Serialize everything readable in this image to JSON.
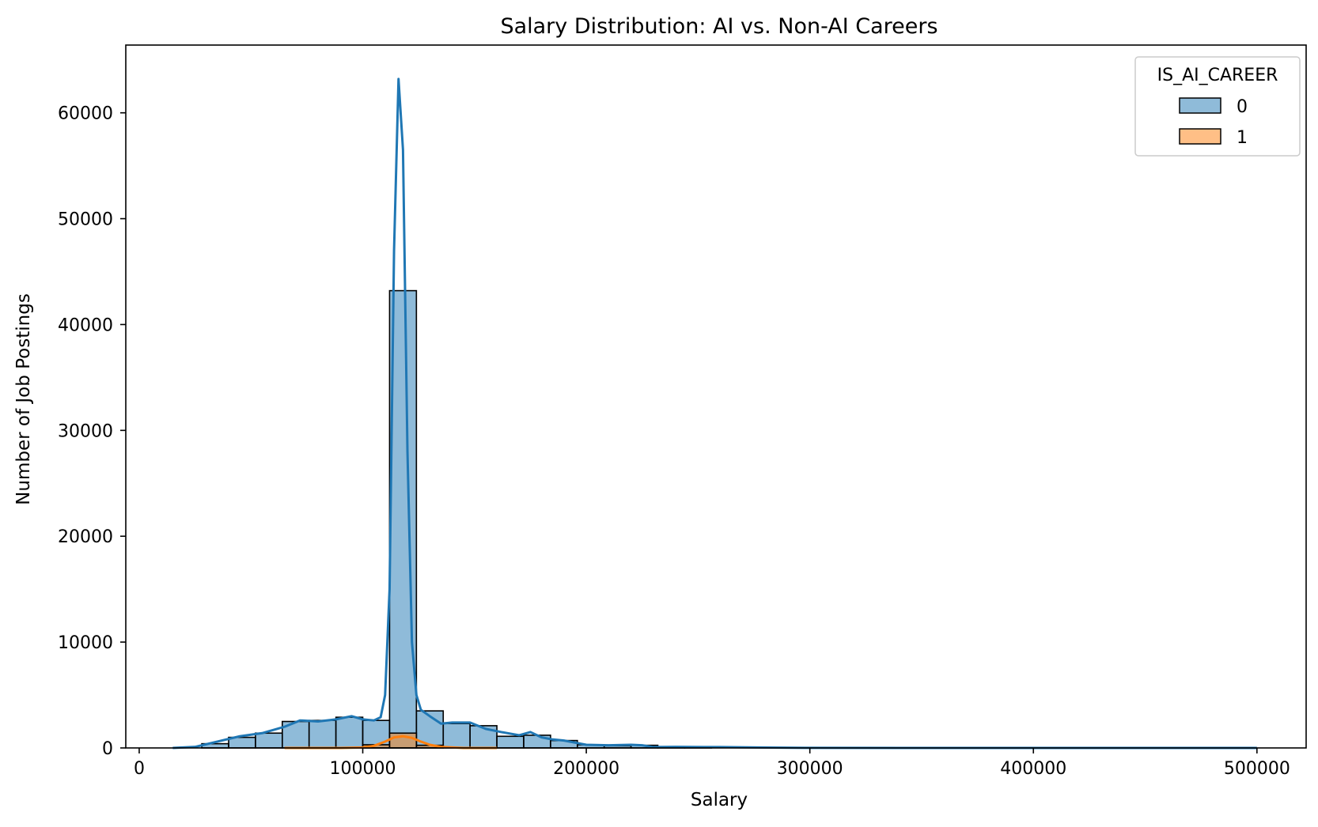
{
  "chart_data": {
    "type": "bar",
    "title": "Salary Distribution: AI vs. Non-AI Careers",
    "xlabel": "Salary",
    "ylabel": "Number of Job Postings",
    "xlim": [
      -6000,
      522000
    ],
    "ylim": [
      0,
      66400
    ],
    "xticks": [
      0,
      100000,
      200000,
      300000,
      400000,
      500000
    ],
    "yticks": [
      0,
      10000,
      20000,
      30000,
      40000,
      50000,
      60000
    ],
    "legend": {
      "title": "IS_AI_CAREER",
      "placement": "top-right"
    },
    "bin_width": 12000,
    "series": [
      {
        "name": "0",
        "color": "#1f77b4",
        "bins": [
          {
            "x0": 28000,
            "x1": 40000,
            "value": 400
          },
          {
            "x0": 40000,
            "x1": 52000,
            "value": 1000
          },
          {
            "x0": 52000,
            "x1": 64000,
            "value": 1400
          },
          {
            "x0": 64000,
            "x1": 76000,
            "value": 2500
          },
          {
            "x0": 76000,
            "x1": 88000,
            "value": 2600
          },
          {
            "x0": 88000,
            "x1": 100000,
            "value": 2900
          },
          {
            "x0": 100000,
            "x1": 112000,
            "value": 2600
          },
          {
            "x0": 112000,
            "x1": 124000,
            "value": 43200
          },
          {
            "x0": 124000,
            "x1": 136000,
            "value": 3500
          },
          {
            "x0": 136000,
            "x1": 148000,
            "value": 2300
          },
          {
            "x0": 148000,
            "x1": 160000,
            "value": 2100
          },
          {
            "x0": 160000,
            "x1": 172000,
            "value": 1100
          },
          {
            "x0": 172000,
            "x1": 184000,
            "value": 1200
          },
          {
            "x0": 184000,
            "x1": 196000,
            "value": 700
          },
          {
            "x0": 196000,
            "x1": 208000,
            "value": 300
          },
          {
            "x0": 208000,
            "x1": 220000,
            "value": 200
          },
          {
            "x0": 220000,
            "x1": 232000,
            "value": 250
          },
          {
            "x0": 232000,
            "x1": 244000,
            "value": 60
          },
          {
            "x0": 244000,
            "x1": 256000,
            "value": 40
          }
        ],
        "kde": {
          "x": [
            15000,
            25000,
            35000,
            45000,
            55000,
            65000,
            72000,
            80000,
            88000,
            95000,
            100000,
            105000,
            108000,
            110000,
            112000,
            114000,
            116000,
            118000,
            120000,
            122000,
            124000,
            126000,
            130000,
            135000,
            140000,
            148000,
            155000,
            162000,
            170000,
            175000,
            180000,
            185000,
            190000,
            195000,
            200000,
            210000,
            220000,
            225000,
            230000,
            240000,
            260000,
            280000,
            300000,
            350000,
            400000,
            450000,
            500000
          ],
          "y": [
            0,
            100,
            600,
            1100,
            1400,
            2000,
            2600,
            2500,
            2700,
            3000,
            2700,
            2600,
            2900,
            5000,
            15000,
            47000,
            63200,
            56500,
            28000,
            10000,
            5000,
            3600,
            3000,
            2300,
            2400,
            2400,
            1800,
            1500,
            1200,
            1500,
            1000,
            800,
            700,
            500,
            300,
            250,
            300,
            250,
            80,
            100,
            80,
            40,
            10,
            0,
            0,
            0,
            0
          ]
        }
      },
      {
        "name": "1",
        "color": "#ff7f0e",
        "bins": [
          {
            "x0": 100000,
            "x1": 112000,
            "value": 300
          },
          {
            "x0": 112000,
            "x1": 124000,
            "value": 1400
          },
          {
            "x0": 124000,
            "x1": 136000,
            "value": 250
          }
        ],
        "kde": {
          "x": [
            65000,
            90000,
            100000,
            105000,
            110000,
            114000,
            118000,
            122000,
            126000,
            130000,
            135000,
            145000,
            160000
          ],
          "y": [
            0,
            0,
            50,
            200,
            600,
            1000,
            1100,
            950,
            600,
            300,
            100,
            0,
            0
          ]
        }
      }
    ]
  }
}
